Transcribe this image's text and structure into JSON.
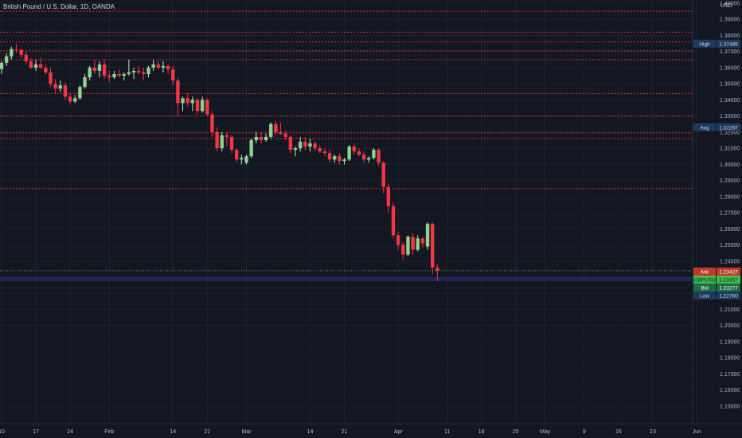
{
  "header": {
    "title": "British Pound / U.S. Dollar, 1D, OANDA",
    "currency": "USD"
  },
  "colors": {
    "background": "#131722",
    "grid": "#1e222d",
    "up": "#4caf50",
    "up_body": "#8fd18f",
    "down": "#f23645",
    "resistance": "#e0262f",
    "current": "#4caf50",
    "low_band": "#2a2e8a"
  },
  "chart_data": {
    "type": "candlestick",
    "title": "British Pound / U.S. Dollar, 1D, OANDA",
    "ylabel": "USD",
    "ylim": [
      1.145,
      1.4
    ],
    "yticks": [
      1.15,
      1.16,
      1.17,
      1.18,
      1.19,
      1.2,
      1.21,
      1.22,
      1.23,
      1.24,
      1.25,
      1.26,
      1.27,
      1.28,
      1.29,
      1.3,
      1.31,
      1.32,
      1.33,
      1.34,
      1.35,
      1.36,
      1.37,
      1.38,
      1.39,
      1.4
    ],
    "ytick_labels": [
      "1.15000",
      "1.16000",
      "1.17000",
      "1.18000",
      "1.19000",
      "1.20000",
      "1.21000",
      "1.22000",
      "1.23000",
      "1.24000",
      "1.25000",
      "1.26000",
      "1.27000",
      "1.28000",
      "1.29000",
      "1.30000",
      "1.31000",
      "1.32000",
      "1.33000",
      "1.34000",
      "1.35000",
      "1.36000",
      "1.37000",
      "1.38000",
      "1.39000",
      "1.40000"
    ],
    "xticks": [
      {
        "label": "10",
        "day": 0
      },
      {
        "label": "17",
        "day": 7
      },
      {
        "label": "24",
        "day": 14
      },
      {
        "label": "Feb",
        "day": 22
      },
      {
        "label": "14",
        "day": 35
      },
      {
        "label": "21",
        "day": 42
      },
      {
        "label": "Mar",
        "day": 50
      },
      {
        "label": "14",
        "day": 63
      },
      {
        "label": "21",
        "day": 70
      },
      {
        "label": "Apr",
        "day": 81
      },
      {
        "label": "11",
        "day": 91
      },
      {
        "label": "18",
        "day": 98
      },
      {
        "label": "25",
        "day": 105
      },
      {
        "label": "May",
        "day": 111
      },
      {
        "label": "9",
        "day": 119
      },
      {
        "label": "16",
        "day": 126
      },
      {
        "label": "23",
        "day": 133
      },
      {
        "label": "Jun",
        "day": 142
      }
    ],
    "candles": [
      {
        "d": 0,
        "o": 1.359,
        "h": 1.364,
        "l": 1.356,
        "c": 1.363
      },
      {
        "d": 1,
        "o": 1.363,
        "h": 1.369,
        "l": 1.361,
        "c": 1.367
      },
      {
        "d": 2,
        "o": 1.367,
        "h": 1.373,
        "l": 1.365,
        "c": 1.3715
      },
      {
        "d": 3,
        "o": 1.3715,
        "h": 1.3749,
        "l": 1.369,
        "c": 1.371
      },
      {
        "d": 4,
        "o": 1.371,
        "h": 1.372,
        "l": 1.366,
        "c": 1.368
      },
      {
        "d": 5,
        "o": 1.368,
        "h": 1.37,
        "l": 1.362,
        "c": 1.364
      },
      {
        "d": 6,
        "o": 1.364,
        "h": 1.366,
        "l": 1.359,
        "c": 1.36
      },
      {
        "d": 7,
        "o": 1.36,
        "h": 1.365,
        "l": 1.358,
        "c": 1.362
      },
      {
        "d": 8,
        "o": 1.362,
        "h": 1.366,
        "l": 1.359,
        "c": 1.36
      },
      {
        "d": 9,
        "o": 1.36,
        "h": 1.362,
        "l": 1.356,
        "c": 1.357
      },
      {
        "d": 10,
        "o": 1.357,
        "h": 1.36,
        "l": 1.348,
        "c": 1.35
      },
      {
        "d": 11,
        "o": 1.35,
        "h": 1.353,
        "l": 1.344,
        "c": 1.347
      },
      {
        "d": 12,
        "o": 1.347,
        "h": 1.352,
        "l": 1.345,
        "c": 1.349
      },
      {
        "d": 13,
        "o": 1.349,
        "h": 1.351,
        "l": 1.34,
        "c": 1.342
      },
      {
        "d": 14,
        "o": 1.342,
        "h": 1.344,
        "l": 1.337,
        "c": 1.339
      },
      {
        "d": 15,
        "o": 1.339,
        "h": 1.343,
        "l": 1.338,
        "c": 1.341
      },
      {
        "d": 16,
        "o": 1.341,
        "h": 1.349,
        "l": 1.34,
        "c": 1.348
      },
      {
        "d": 17,
        "o": 1.348,
        "h": 1.356,
        "l": 1.347,
        "c": 1.354
      },
      {
        "d": 18,
        "o": 1.354,
        "h": 1.361,
        "l": 1.352,
        "c": 1.36
      },
      {
        "d": 19,
        "o": 1.36,
        "h": 1.365,
        "l": 1.356,
        "c": 1.358
      },
      {
        "d": 20,
        "o": 1.358,
        "h": 1.364,
        "l": 1.354,
        "c": 1.362
      },
      {
        "d": 21,
        "o": 1.362,
        "h": 1.365,
        "l": 1.353,
        "c": 1.355
      },
      {
        "d": 22,
        "o": 1.355,
        "h": 1.358,
        "l": 1.351,
        "c": 1.354
      },
      {
        "d": 23,
        "o": 1.354,
        "h": 1.358,
        "l": 1.353,
        "c": 1.356
      },
      {
        "d": 24,
        "o": 1.356,
        "h": 1.359,
        "l": 1.354,
        "c": 1.355
      },
      {
        "d": 25,
        "o": 1.355,
        "h": 1.357,
        "l": 1.352,
        "c": 1.356
      },
      {
        "d": 26,
        "o": 1.356,
        "h": 1.365,
        "l": 1.355,
        "c": 1.357
      },
      {
        "d": 27,
        "o": 1.357,
        "h": 1.36,
        "l": 1.353,
        "c": 1.358
      },
      {
        "d": 28,
        "o": 1.358,
        "h": 1.361,
        "l": 1.356,
        "c": 1.357
      },
      {
        "d": 29,
        "o": 1.357,
        "h": 1.36,
        "l": 1.352,
        "c": 1.356
      },
      {
        "d": 30,
        "o": 1.356,
        "h": 1.361,
        "l": 1.354,
        "c": 1.36
      },
      {
        "d": 31,
        "o": 1.36,
        "h": 1.365,
        "l": 1.358,
        "c": 1.362
      },
      {
        "d": 32,
        "o": 1.362,
        "h": 1.364,
        "l": 1.359,
        "c": 1.36
      },
      {
        "d": 33,
        "o": 1.36,
        "h": 1.364,
        "l": 1.357,
        "c": 1.361
      },
      {
        "d": 34,
        "o": 1.361,
        "h": 1.362,
        "l": 1.356,
        "c": 1.359
      },
      {
        "d": 35,
        "o": 1.359,
        "h": 1.361,
        "l": 1.349,
        "c": 1.352
      },
      {
        "d": 36,
        "o": 1.352,
        "h": 1.354,
        "l": 1.33,
        "c": 1.338
      },
      {
        "d": 37,
        "o": 1.338,
        "h": 1.342,
        "l": 1.333,
        "c": 1.341
      },
      {
        "d": 38,
        "o": 1.341,
        "h": 1.344,
        "l": 1.336,
        "c": 1.338
      },
      {
        "d": 39,
        "o": 1.338,
        "h": 1.342,
        "l": 1.333,
        "c": 1.34
      },
      {
        "d": 40,
        "o": 1.34,
        "h": 1.341,
        "l": 1.331,
        "c": 1.333
      },
      {
        "d": 41,
        "o": 1.333,
        "h": 1.342,
        "l": 1.332,
        "c": 1.34
      },
      {
        "d": 42,
        "o": 1.34,
        "h": 1.341,
        "l": 1.33,
        "c": 1.331
      },
      {
        "d": 43,
        "o": 1.331,
        "h": 1.333,
        "l": 1.317,
        "c": 1.32
      },
      {
        "d": 44,
        "o": 1.32,
        "h": 1.323,
        "l": 1.308,
        "c": 1.31
      },
      {
        "d": 45,
        "o": 1.31,
        "h": 1.32,
        "l": 1.308,
        "c": 1.318
      },
      {
        "d": 46,
        "o": 1.318,
        "h": 1.32,
        "l": 1.311,
        "c": 1.317
      },
      {
        "d": 47,
        "o": 1.317,
        "h": 1.318,
        "l": 1.307,
        "c": 1.309
      },
      {
        "d": 48,
        "o": 1.309,
        "h": 1.31,
        "l": 1.301,
        "c": 1.303
      },
      {
        "d": 49,
        "o": 1.303,
        "h": 1.306,
        "l": 1.3,
        "c": 1.304
      },
      {
        "d": 50,
        "o": 1.301,
        "h": 1.306,
        "l": 1.3,
        "c": 1.305
      },
      {
        "d": 51,
        "o": 1.305,
        "h": 1.316,
        "l": 1.304,
        "c": 1.315
      },
      {
        "d": 52,
        "o": 1.315,
        "h": 1.32,
        "l": 1.313,
        "c": 1.317
      },
      {
        "d": 53,
        "o": 1.317,
        "h": 1.32,
        "l": 1.313,
        "c": 1.315
      },
      {
        "d": 54,
        "o": 1.315,
        "h": 1.319,
        "l": 1.314,
        "c": 1.317
      },
      {
        "d": 55,
        "o": 1.317,
        "h": 1.326,
        "l": 1.316,
        "c": 1.325
      },
      {
        "d": 56,
        "o": 1.325,
        "h": 1.327,
        "l": 1.318,
        "c": 1.32
      },
      {
        "d": 57,
        "o": 1.32,
        "h": 1.326,
        "l": 1.318,
        "c": 1.319
      },
      {
        "d": 58,
        "o": 1.319,
        "h": 1.321,
        "l": 1.315,
        "c": 1.317
      },
      {
        "d": 59,
        "o": 1.317,
        "h": 1.318,
        "l": 1.307,
        "c": 1.309
      },
      {
        "d": 60,
        "o": 1.309,
        "h": 1.311,
        "l": 1.305,
        "c": 1.31
      },
      {
        "d": 61,
        "o": 1.31,
        "h": 1.317,
        "l": 1.308,
        "c": 1.314
      },
      {
        "d": 62,
        "o": 1.314,
        "h": 1.317,
        "l": 1.309,
        "c": 1.311
      },
      {
        "d": 63,
        "o": 1.311,
        "h": 1.316,
        "l": 1.308,
        "c": 1.313
      },
      {
        "d": 64,
        "o": 1.313,
        "h": 1.314,
        "l": 1.308,
        "c": 1.31
      },
      {
        "d": 65,
        "o": 1.31,
        "h": 1.312,
        "l": 1.307,
        "c": 1.308
      },
      {
        "d": 66,
        "o": 1.308,
        "h": 1.31,
        "l": 1.305,
        "c": 1.307
      },
      {
        "d": 67,
        "o": 1.307,
        "h": 1.309,
        "l": 1.301,
        "c": 1.303
      },
      {
        "d": 68,
        "o": 1.303,
        "h": 1.306,
        "l": 1.301,
        "c": 1.305
      },
      {
        "d": 69,
        "o": 1.305,
        "h": 1.307,
        "l": 1.3,
        "c": 1.302
      },
      {
        "d": 70,
        "o": 1.302,
        "h": 1.304,
        "l": 1.3,
        "c": 1.303
      },
      {
        "d": 71,
        "o": 1.303,
        "h": 1.312,
        "l": 1.302,
        "c": 1.311
      },
      {
        "d": 72,
        "o": 1.311,
        "h": 1.313,
        "l": 1.306,
        "c": 1.308
      },
      {
        "d": 73,
        "o": 1.308,
        "h": 1.31,
        "l": 1.305,
        "c": 1.306
      },
      {
        "d": 74,
        "o": 1.306,
        "h": 1.308,
        "l": 1.301,
        "c": 1.303
      },
      {
        "d": 75,
        "o": 1.303,
        "h": 1.305,
        "l": 1.301,
        "c": 1.304
      },
      {
        "d": 76,
        "o": 1.304,
        "h": 1.31,
        "l": 1.303,
        "c": 1.309
      },
      {
        "d": 77,
        "o": 1.309,
        "h": 1.31,
        "l": 1.299,
        "c": 1.301
      },
      {
        "d": 78,
        "o": 1.301,
        "h": 1.302,
        "l": 1.282,
        "c": 1.286
      },
      {
        "d": 79,
        "o": 1.286,
        "h": 1.288,
        "l": 1.27,
        "c": 1.274
      },
      {
        "d": 80,
        "o": 1.274,
        "h": 1.276,
        "l": 1.254,
        "c": 1.256
      },
      {
        "d": 81,
        "o": 1.256,
        "h": 1.258,
        "l": 1.247,
        "c": 1.25
      },
      {
        "d": 82,
        "o": 1.25,
        "h": 1.252,
        "l": 1.241,
        "c": 1.244
      },
      {
        "d": 83,
        "o": 1.244,
        "h": 1.256,
        "l": 1.243,
        "c": 1.255
      },
      {
        "d": 84,
        "o": 1.255,
        "h": 1.257,
        "l": 1.244,
        "c": 1.247
      },
      {
        "d": 85,
        "o": 1.247,
        "h": 1.256,
        "l": 1.246,
        "c": 1.254
      },
      {
        "d": 86,
        "o": 1.254,
        "h": 1.255,
        "l": 1.248,
        "c": 1.251
      },
      {
        "d": 87,
        "o": 1.249,
        "h": 1.264,
        "l": 1.247,
        "c": 1.263
      },
      {
        "d": 88,
        "o": 1.263,
        "h": 1.264,
        "l": 1.232,
        "c": 1.236
      },
      {
        "d": 89,
        "o": 1.236,
        "h": 1.238,
        "l": 1.2276,
        "c": 1.234
      }
    ],
    "resistance_levels": [
      1.395,
      1.382,
      1.376,
      1.3705,
      1.365,
      1.344,
      1.33,
      1.3195,
      1.316,
      1.285
    ],
    "ask_bid_band": [
      1.2275,
      1.23
    ],
    "current_price": 1.234,
    "badges": {
      "high": {
        "label": "High",
        "value": "1.37489",
        "price": 1.37489
      },
      "avg": {
        "label": "Avg",
        "value": "1.32297",
        "price": 1.32297
      },
      "ask": {
        "label": "Ask",
        "value": "1.23427",
        "price": 1.23427
      },
      "last": {
        "label": "GBPUSD",
        "value": "1.23357",
        "price": 1.23357
      },
      "bid": {
        "label": "Bid",
        "value": "1.23277",
        "price": 1.23277
      },
      "low": {
        "label": "Low",
        "value": "1.22760",
        "price": 1.2276
      }
    }
  }
}
